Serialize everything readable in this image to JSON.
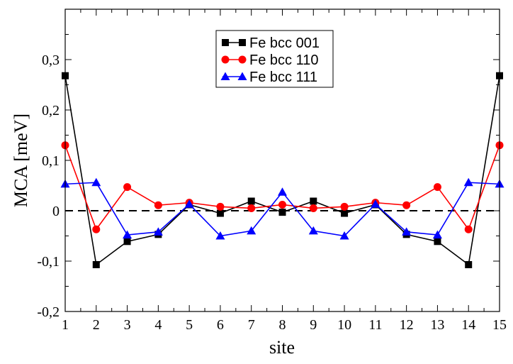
{
  "chart_data": {
    "type": "line",
    "title": "",
    "xlabel": "site",
    "ylabel": "MCA [meV]",
    "xlim": [
      1,
      15
    ],
    "ylim": [
      -0.2,
      0.4
    ],
    "x_ticks": [
      1,
      2,
      3,
      4,
      5,
      6,
      7,
      8,
      9,
      10,
      11,
      12,
      13,
      14,
      15
    ],
    "x_tick_labels": [
      "1",
      "2",
      "3",
      "4",
      "5",
      "6",
      "7",
      "8",
      "9",
      "10",
      "11",
      "12",
      "13",
      "14",
      "15"
    ],
    "y_ticks": [
      -0.2,
      -0.1,
      0,
      0.1,
      0.2,
      0.3
    ],
    "y_tick_labels": [
      "-0,2",
      "-0,1",
      "0",
      "0,1",
      "0,2",
      "0,3"
    ],
    "reference_line": {
      "y": 0,
      "style": "dashed",
      "color": "#000000"
    },
    "legend_position": "top-center",
    "x": [
      1,
      2,
      3,
      4,
      5,
      6,
      7,
      8,
      9,
      10,
      11,
      12,
      13,
      14,
      15
    ],
    "series": [
      {
        "name": "Fe bcc 001",
        "color": "#000000",
        "marker": "square",
        "values": [
          0.268,
          -0.107,
          -0.061,
          -0.047,
          0.012,
          -0.005,
          0.019,
          -0.003,
          0.019,
          -0.005,
          0.012,
          -0.047,
          -0.061,
          -0.107,
          0.268
        ]
      },
      {
        "name": "Fe bcc 110",
        "color": "#ff0000",
        "marker": "circle",
        "values": [
          0.13,
          -0.037,
          0.047,
          0.011,
          0.016,
          0.008,
          0.005,
          0.012,
          0.005,
          0.008,
          0.016,
          0.011,
          0.047,
          -0.037,
          0.13
        ]
      },
      {
        "name": "Fe bcc 111",
        "color": "#0000ff",
        "marker": "triangle",
        "values": [
          0.053,
          0.056,
          -0.048,
          -0.042,
          0.013,
          -0.05,
          -0.04,
          0.037,
          -0.04,
          -0.05,
          0.013,
          -0.042,
          -0.048,
          0.056,
          0.053
        ]
      }
    ]
  }
}
